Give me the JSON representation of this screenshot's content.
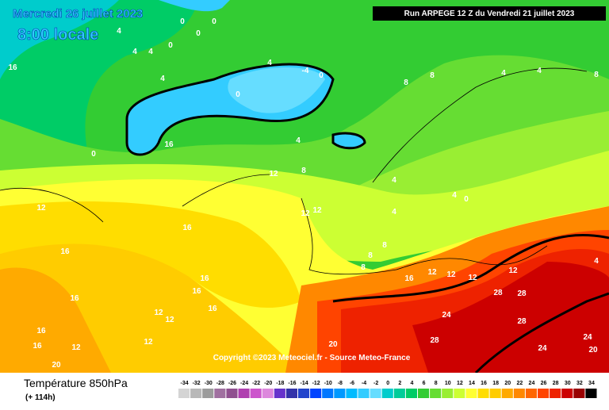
{
  "header": {
    "date": "Mercredi 26 juillet 2023",
    "time": "8:00 locale",
    "run": "Run ARPEGE 12 Z du Vendredi 21 juillet 2023"
  },
  "copyright": "Copyright ©2023 Meteociel.fr - Source Meteo-France",
  "footer": {
    "title": "Température 850hPa",
    "lead": "(+ 114h)"
  },
  "colorbar": {
    "values": [
      -34,
      -32,
      -30,
      -28,
      -26,
      -24,
      -22,
      -20,
      -18,
      -16,
      -14,
      -12,
      -10,
      -8,
      -6,
      -4,
      -2,
      0,
      2,
      4,
      6,
      8,
      10,
      12,
      14,
      16,
      18,
      20,
      22,
      24,
      26,
      28,
      30,
      32,
      34
    ],
    "colors": [
      "#d4d4d4",
      "#b8b8b8",
      "#9c9c9c",
      "#a070a0",
      "#905090",
      "#b040b0",
      "#cc55cc",
      "#dd88dd",
      "#6633cc",
      "#3333aa",
      "#2244cc",
      "#0044ff",
      "#0077ff",
      "#0099ff",
      "#00bbff",
      "#33ccff",
      "#66ddff",
      "#00cccc",
      "#00cc99",
      "#00cc66",
      "#33cc33",
      "#66dd33",
      "#99ee33",
      "#ccff33",
      "#ffff33",
      "#ffdd00",
      "#ffcc00",
      "#ffaa00",
      "#ff8800",
      "#ff6600",
      "#ff4400",
      "#ee2200",
      "#cc0000",
      "#990000",
      "#000000"
    ]
  },
  "contour_labels": [
    0,
    0,
    0,
    4,
    4,
    4,
    0,
    -4,
    0,
    0,
    4,
    4,
    8,
    8,
    4,
    4,
    8,
    4,
    8,
    12,
    12,
    12,
    16,
    16,
    16,
    16,
    16,
    12,
    12,
    12,
    8,
    8,
    12,
    16,
    16,
    12,
    16,
    20,
    24,
    28,
    28,
    28,
    28,
    24,
    24,
    20,
    20,
    4,
    4,
    4,
    0,
    0,
    16,
    16,
    12,
    16,
    12,
    12,
    12,
    8,
    4
  ]
}
